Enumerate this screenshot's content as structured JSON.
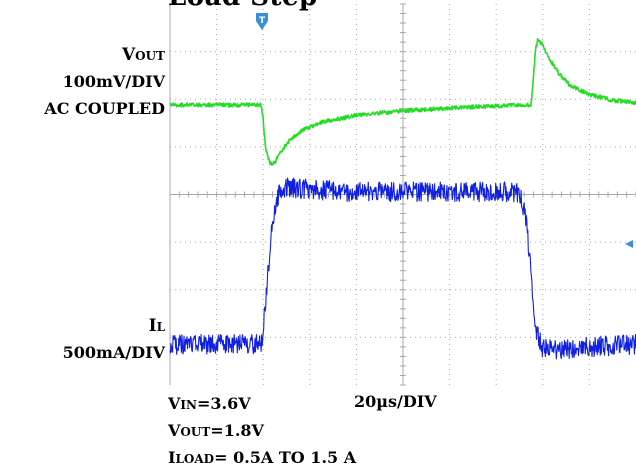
{
  "title_fragment": "Load Step",
  "left_labels": {
    "vout_main": "V",
    "vout_sub": "OUT",
    "vout_scale": "100mV/DIV",
    "vout_coupling": "AC COUPLED",
    "il_main": "I",
    "il_sub": "L",
    "il_scale": "500mA/DIV"
  },
  "bottom_labels": {
    "vin_main": "V",
    "vin_sub": "IN",
    "vin_value": "=3.6V",
    "timebase": "20µs/DIV",
    "vout_main": "V",
    "vout_sub": "OUT",
    "vout_value": "=1.8V",
    "iload_main": "I",
    "iload_sub": "LOAD",
    "iload_value": "= 0.5A TO 1.5 A"
  },
  "colors": {
    "background": "#ffffff",
    "grid": "#a8a8a8",
    "vout_trace": "#22dd22",
    "il_trace": "#1020e0",
    "trigger_marker": "#3a8fd8",
    "level_marker": "#3a8fd8"
  },
  "icons": {
    "trigger_marker": "trigger-marker-icon",
    "level_marker": "arrow-left-icon"
  },
  "chart_data": {
    "type": "line",
    "x_unit": "µs",
    "grid_divisions": {
      "x": 10,
      "y": 8
    },
    "xlim": [
      0,
      200
    ],
    "series": [
      {
        "name": "VOUT",
        "y_unit": "div",
        "x": [
          0,
          39,
          40,
          41,
          43,
          45,
          48,
          52,
          58,
          66,
          80,
          100,
          130,
          150,
          155,
          156,
          157,
          158,
          160,
          163,
          167,
          172,
          180,
          190,
          200
        ],
        "y": [
          0,
          0,
          -0.3,
          -0.9,
          -1.25,
          -1.2,
          -0.95,
          -0.7,
          -0.5,
          -0.35,
          -0.22,
          -0.12,
          -0.04,
          0,
          0,
          0.6,
          1.2,
          1.4,
          1.25,
          0.95,
          0.65,
          0.4,
          0.22,
          0.1,
          0.05
        ]
      },
      {
        "name": "IL",
        "y_unit": "div",
        "x": [
          0,
          39,
          40,
          42,
          44,
          46,
          50,
          60,
          80,
          100,
          150,
          153,
          155,
          157,
          160,
          170,
          180,
          200
        ],
        "y": [
          -3.2,
          -3.2,
          -2.9,
          -1.7,
          -0.6,
          -0.1,
          0.1,
          0.05,
          0,
          0,
          0,
          -0.6,
          -1.8,
          -2.9,
          -3.3,
          -3.3,
          -3.25,
          -3.2
        ]
      }
    ]
  }
}
